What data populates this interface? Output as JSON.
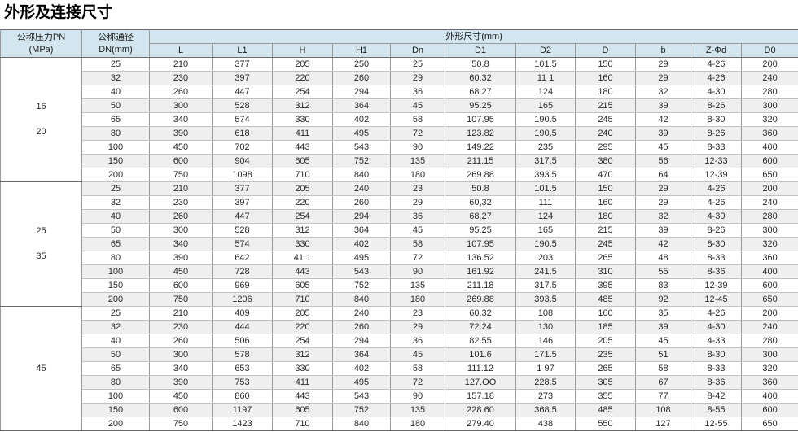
{
  "page_title": "外形及连接尺寸",
  "colors": {
    "header_bg": "#d3e5ef",
    "stripe_bg": "#efefef",
    "border_dark": "#6b6b6b",
    "border_mid": "#9a9a9a",
    "border_light": "#c2c2c2"
  },
  "table": {
    "pressure_header_line1": "公称压力PN",
    "pressure_header_line2": "(MPa)",
    "dn_header_line1": "公称通径",
    "dn_header_line2": "DN(mm)",
    "dimensions_header": "外形尺寸(mm)",
    "columns": [
      "L",
      "L1",
      "H",
      "H1",
      "Dn",
      "D1",
      "D2",
      "D",
      "b",
      "Z-Φd",
      "D0"
    ],
    "groups": [
      {
        "pn_lines": [
          "16",
          "20"
        ],
        "rows": [
          {
            "dn": "25",
            "values": [
              "210",
              "377",
              "205",
              "250",
              "25",
              "50.8",
              "101.5",
              "150",
              "29",
              "4-26",
              "200"
            ]
          },
          {
            "dn": "32",
            "values": [
              "230",
              "397",
              "220",
              "260",
              "29",
              "60.32",
              "11 1",
              "160",
              "29",
              "4-26",
              "240"
            ]
          },
          {
            "dn": "40",
            "values": [
              "260",
              "447",
              "254",
              "294",
              "36",
              "68.27",
              "124",
              "180",
              "32",
              "4-30",
              "280"
            ]
          },
          {
            "dn": "50",
            "values": [
              "300",
              "528",
              "312",
              "364",
              "45",
              "95.25",
              "165",
              "215",
              "39",
              "8-26",
              "300"
            ]
          },
          {
            "dn": "65",
            "values": [
              "340",
              "574",
              "330",
              "402",
              "58",
              "107.95",
              "190.5",
              "245",
              "42",
              "8-30",
              "320"
            ]
          },
          {
            "dn": "80",
            "values": [
              "390",
              "618",
              "411",
              "495",
              "72",
              "123.82",
              "190.5",
              "240",
              "39",
              "8-26",
              "360"
            ]
          },
          {
            "dn": "100",
            "values": [
              "450",
              "702",
              "443",
              "543",
              "90",
              "149.22",
              "235",
              "295",
              "45",
              "8-33",
              "400"
            ]
          },
          {
            "dn": "150",
            "values": [
              "600",
              "904",
              "605",
              "752",
              "135",
              "211.15",
              "317.5",
              "380",
              "56",
              "12-33",
              "600"
            ]
          },
          {
            "dn": "200",
            "values": [
              "750",
              "1098",
              "710",
              "840",
              "180",
              "269.88",
              "393.5",
              "470",
              "64",
              "12-39",
              "650"
            ]
          }
        ]
      },
      {
        "pn_lines": [
          "25",
          "35"
        ],
        "rows": [
          {
            "dn": "25",
            "values": [
              "210",
              "377",
              "205",
              "240",
              "23",
              "50.8",
              "101.5",
              "150",
              "29",
              "4-26",
              "200"
            ]
          },
          {
            "dn": "32",
            "values": [
              "230",
              "397",
              "220",
              "260",
              "29",
              "60,32",
              "111",
              "160",
              "29",
              "4-26",
              "240"
            ]
          },
          {
            "dn": "40",
            "values": [
              "260",
              "447",
              "254",
              "294",
              "36",
              "68.27",
              "124",
              "180",
              "32",
              "4-30",
              "280"
            ]
          },
          {
            "dn": "50",
            "values": [
              "300",
              "528",
              "312",
              "364",
              "45",
              "95.25",
              "165",
              "215",
              "39",
              "8-26",
              "300"
            ]
          },
          {
            "dn": "65",
            "values": [
              "340",
              "574",
              "330",
              "402",
              "58",
              "107.95",
              "190.5",
              "245",
              "42",
              "8-30",
              "320"
            ]
          },
          {
            "dn": "80",
            "values": [
              "390",
              "642",
              "41 1",
              "495",
              "72",
              "136.52",
              "203",
              "265",
              "48",
              "8-33",
              "360"
            ]
          },
          {
            "dn": "100",
            "values": [
              "450",
              "728",
              "443",
              "543",
              "90",
              "161.92",
              "241.5",
              "310",
              "55",
              "8-36",
              "400"
            ]
          },
          {
            "dn": "150",
            "values": [
              "600",
              "969",
              "605",
              "752",
              "135",
              "211.18",
              "317.5",
              "395",
              "83",
              "12-39",
              "600"
            ]
          },
          {
            "dn": "200",
            "values": [
              "750",
              "1206",
              "710",
              "840",
              "180",
              "269.88",
              "393.5",
              "485",
              "92",
              "12-45",
              "650"
            ]
          }
        ]
      },
      {
        "pn_lines": [
          "45"
        ],
        "rows": [
          {
            "dn": "25",
            "values": [
              "210",
              "409",
              "205",
              "240",
              "23",
              "60.32",
              "108",
              "160",
              "35",
              "4-26",
              "200"
            ]
          },
          {
            "dn": "32",
            "values": [
              "230",
              "444",
              "220",
              "260",
              "29",
              "72.24",
              "130",
              "185",
              "39",
              "4-30",
              "240"
            ]
          },
          {
            "dn": "40",
            "values": [
              "260",
              "506",
              "254",
              "294",
              "36",
              "82.55",
              "146",
              "205",
              "45",
              "4-33",
              "280"
            ]
          },
          {
            "dn": "50",
            "values": [
              "300",
              "578",
              "312",
              "364",
              "45",
              "101.6",
              "171.5",
              "235",
              "51",
              "8-30",
              "300"
            ]
          },
          {
            "dn": "65",
            "values": [
              "340",
              "653",
              "330",
              "402",
              "58",
              "111.12",
              "1 97",
              "265",
              "58",
              "8-33",
              "320"
            ]
          },
          {
            "dn": "80",
            "values": [
              "390",
              "753",
              "411",
              "495",
              "72",
              "127.OO",
              "228.5",
              "305",
              "67",
              "8-36",
              "360"
            ]
          },
          {
            "dn": "100",
            "values": [
              "450",
              "860",
              "443",
              "543",
              "90",
              "157.18",
              "273",
              "355",
              "77",
              "8-42",
              "400"
            ]
          },
          {
            "dn": "150",
            "values": [
              "600",
              "1197",
              "605",
              "752",
              "135",
              "228.60",
              "368.5",
              "485",
              "108",
              "8-55",
              "600"
            ]
          },
          {
            "dn": "200",
            "values": [
              "750",
              "1423",
              "710",
              "840",
              "180",
              "279.40",
              "438",
              "550",
              "127",
              "12-55",
              "650"
            ]
          }
        ]
      }
    ]
  }
}
